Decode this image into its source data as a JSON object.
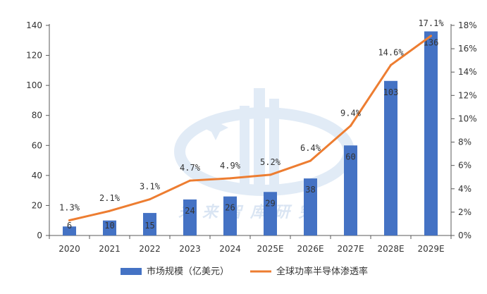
{
  "chart_data": {
    "type": "bar",
    "categories": [
      "2020",
      "2021",
      "2022",
      "2023",
      "2024",
      "2025E",
      "2026E",
      "2027E",
      "2028E",
      "2029E"
    ],
    "series": [
      {
        "name": "市场规模（亿美元）",
        "type": "bar",
        "axis": "left",
        "color": "#4472C4",
        "values": [
          6,
          10,
          15,
          24,
          26,
          29,
          38,
          60,
          103,
          136
        ],
        "labels": [
          "6",
          "10",
          "15",
          "24",
          "26",
          "29",
          "38",
          "60",
          "103",
          "136"
        ]
      },
      {
        "name": "全球功率半导体渗透率",
        "type": "line",
        "axis": "right",
        "color": "#ED7D31",
        "values": [
          1.3,
          2.1,
          3.1,
          4.7,
          4.9,
          5.2,
          6.4,
          9.4,
          14.6,
          17.1
        ],
        "labels": [
          "1.3%",
          "2.1%",
          "3.1%",
          "4.7%",
          "4.9%",
          "5.2%",
          "6.4%",
          "9.4%",
          "14.6%",
          "17.1%"
        ]
      }
    ],
    "ylim_left": [
      0,
      140
    ],
    "yticks_left": [
      0,
      20,
      40,
      60,
      80,
      100,
      120,
      140
    ],
    "ylim_right": [
      0,
      18
    ],
    "yticks_right": [
      0,
      2,
      4,
      6,
      8,
      10,
      12,
      14,
      16,
      18
    ],
    "ytick_labels_right": [
      "0%",
      "2%",
      "4%",
      "6%",
      "8%",
      "10%",
      "12%",
      "14%",
      "16%",
      "18%"
    ],
    "legend": {
      "position": "bottom",
      "items": [
        "市场规模（亿美元）",
        "全球功率半导体渗透率"
      ]
    },
    "grid": false,
    "watermark_text": "未来智库研究"
  }
}
